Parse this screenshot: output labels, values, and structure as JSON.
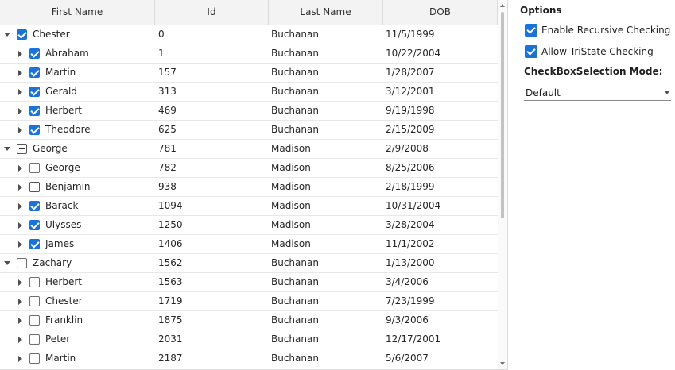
{
  "grid": {
    "columns": [
      "First Name",
      "Id",
      "Last Name",
      "DOB"
    ],
    "rows": [
      {
        "level": 0,
        "expanded": true,
        "state": "checked",
        "first": "Chester",
        "id": "0",
        "last": "Buchanan",
        "dob": "11/5/1999"
      },
      {
        "level": 1,
        "expanded": false,
        "state": "checked",
        "first": "Abraham",
        "id": "1",
        "last": "Buchanan",
        "dob": "10/22/2004"
      },
      {
        "level": 1,
        "expanded": false,
        "state": "checked",
        "first": "Martin",
        "id": "157",
        "last": "Buchanan",
        "dob": "1/28/2007"
      },
      {
        "level": 1,
        "expanded": false,
        "state": "checked",
        "first": "Gerald",
        "id": "313",
        "last": "Buchanan",
        "dob": "3/12/2001"
      },
      {
        "level": 1,
        "expanded": false,
        "state": "checked",
        "first": "Herbert",
        "id": "469",
        "last": "Buchanan",
        "dob": "9/19/1998"
      },
      {
        "level": 1,
        "expanded": false,
        "state": "checked",
        "first": "Theodore",
        "id": "625",
        "last": "Buchanan",
        "dob": "2/15/2009"
      },
      {
        "level": 0,
        "expanded": true,
        "state": "partial",
        "first": "George",
        "id": "781",
        "last": "Madison",
        "dob": "2/9/2008"
      },
      {
        "level": 1,
        "expanded": false,
        "state": "unchecked",
        "first": "George",
        "id": "782",
        "last": "Madison",
        "dob": "8/25/2006"
      },
      {
        "level": 1,
        "expanded": false,
        "state": "partial",
        "first": "Benjamin",
        "id": "938",
        "last": "Madison",
        "dob": "2/18/1999"
      },
      {
        "level": 1,
        "expanded": false,
        "state": "checked",
        "first": "Barack",
        "id": "1094",
        "last": "Madison",
        "dob": "10/31/2004"
      },
      {
        "level": 1,
        "expanded": false,
        "state": "checked",
        "first": "Ulysses",
        "id": "1250",
        "last": "Madison",
        "dob": "3/28/2004"
      },
      {
        "level": 1,
        "expanded": false,
        "state": "checked",
        "first": "James",
        "id": "1406",
        "last": "Madison",
        "dob": "11/1/2002"
      },
      {
        "level": 0,
        "expanded": true,
        "state": "unchecked",
        "first": "Zachary",
        "id": "1562",
        "last": "Buchanan",
        "dob": "1/13/2000"
      },
      {
        "level": 1,
        "expanded": false,
        "state": "unchecked",
        "first": "Herbert",
        "id": "1563",
        "last": "Buchanan",
        "dob": "3/4/2006"
      },
      {
        "level": 1,
        "expanded": false,
        "state": "unchecked",
        "first": "Chester",
        "id": "1719",
        "last": "Buchanan",
        "dob": "7/23/1999"
      },
      {
        "level": 1,
        "expanded": false,
        "state": "unchecked",
        "first": "Franklin",
        "id": "1875",
        "last": "Buchanan",
        "dob": "9/3/2006"
      },
      {
        "level": 1,
        "expanded": false,
        "state": "unchecked",
        "first": "Peter",
        "id": "2031",
        "last": "Buchanan",
        "dob": "12/17/2001"
      },
      {
        "level": 1,
        "expanded": false,
        "state": "unchecked",
        "first": "Martin",
        "id": "2187",
        "last": "Buchanan",
        "dob": "5/6/2007"
      }
    ]
  },
  "options": {
    "title": "Options",
    "recursive_label": "Enable Recursive Checking",
    "recursive_checked": true,
    "tristate_label": "Allow TriState Checking",
    "tristate_checked": true,
    "mode_label": "CheckBoxSelection Mode:",
    "mode_value": "Default"
  },
  "colors": {
    "accent": "#1a73d9",
    "header_bg": "#f3f3f3",
    "row_border": "#e8e8e8"
  },
  "icons": {
    "expanded": "triangle-down-icon",
    "collapsed": "triangle-right-icon"
  }
}
